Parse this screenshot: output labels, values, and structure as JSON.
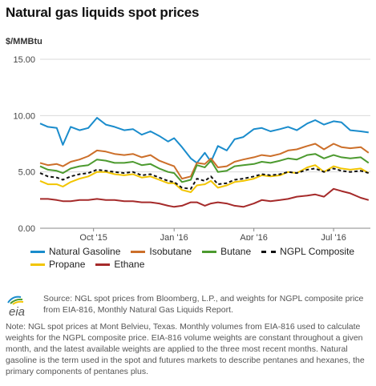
{
  "title": "Natural gas liquids spot prices",
  "unit_label": "$/MMBtu",
  "source_text": "Source: NGL spot prices from Bloomberg, L.P., and weights for NGPL composite price from EIA-816, Monthly Natural Gas Liquids Report.",
  "note_text": "Note: NGL spot prices at Mont Belvieu, Texas. Monthly volumes from EIA-816 used to calculate weights for the NGPL composite price. EIA-816 volume weights are constant throughout a given month, and the latest available weights are applied to the three most recent months. Natural gasoline is the term used in the spot and futures markets to describe pentanes and hexanes, the primary components of pentanes plus.",
  "logo_text": "eia",
  "chart_data": {
    "type": "line",
    "title": "Natural gas liquids spot prices",
    "ylabel": "$/MMBtu",
    "xlabel": "",
    "ylim": [
      0,
      15
    ],
    "yticks": [
      "0.00",
      "5.00",
      "10.00",
      "15.00"
    ],
    "xlim": [
      "2015-08-01",
      "2016-08-12"
    ],
    "xticks": [
      {
        "label": "Oct '15",
        "date": "2015-10-01"
      },
      {
        "label": "Jan '16",
        "date": "2016-01-01"
      },
      {
        "label": "Apr '16",
        "date": "2016-04-01"
      },
      {
        "label": "Jul '16",
        "date": "2016-07-01"
      }
    ],
    "grid": "horizontal",
    "legend_position": "bottom",
    "dates": [
      "2015-08-01",
      "2015-08-10",
      "2015-08-20",
      "2015-08-27",
      "2015-09-05",
      "2015-09-15",
      "2015-09-25",
      "2015-10-05",
      "2015-10-15",
      "2015-10-25",
      "2015-11-05",
      "2015-11-15",
      "2015-11-25",
      "2015-12-05",
      "2015-12-15",
      "2015-12-25",
      "2016-01-01",
      "2016-01-10",
      "2016-01-20",
      "2016-01-27",
      "2016-02-05",
      "2016-02-12",
      "2016-02-20",
      "2016-03-01",
      "2016-03-10",
      "2016-03-20",
      "2016-04-01",
      "2016-04-10",
      "2016-04-20",
      "2016-05-01",
      "2016-05-10",
      "2016-05-20",
      "2016-06-01",
      "2016-06-10",
      "2016-06-20",
      "2016-07-01",
      "2016-07-10",
      "2016-07-20",
      "2016-08-01",
      "2016-08-10"
    ],
    "series": [
      {
        "name": "Natural Gasoline",
        "color": "#1a8ccc",
        "values": [
          9.3,
          9.0,
          8.9,
          7.4,
          9.0,
          8.7,
          8.9,
          9.8,
          9.2,
          9.0,
          8.7,
          8.8,
          8.3,
          8.6,
          8.2,
          7.7,
          8.0,
          7.2,
          6.2,
          5.8,
          6.7,
          5.9,
          7.3,
          6.9,
          7.9,
          8.1,
          8.8,
          8.9,
          8.6,
          8.8,
          9.0,
          8.7,
          9.3,
          9.6,
          9.2,
          9.5,
          9.4,
          8.7,
          8.6,
          8.5
        ]
      },
      {
        "name": "Isobutane",
        "color": "#cc6f2a",
        "values": [
          5.8,
          5.6,
          5.7,
          5.5,
          5.9,
          6.1,
          6.4,
          6.9,
          6.8,
          6.6,
          6.5,
          6.6,
          6.3,
          6.5,
          6.0,
          5.7,
          5.5,
          4.4,
          4.6,
          5.8,
          5.7,
          6.2,
          5.4,
          5.5,
          5.9,
          6.1,
          6.3,
          6.5,
          6.4,
          6.6,
          6.9,
          7.0,
          7.3,
          7.5,
          7.0,
          7.5,
          7.2,
          7.1,
          7.2,
          6.7
        ]
      },
      {
        "name": "Butane",
        "color": "#4c9a2f",
        "values": [
          5.5,
          5.2,
          5.1,
          4.9,
          5.3,
          5.5,
          5.6,
          6.1,
          6.0,
          5.8,
          5.8,
          5.9,
          5.6,
          5.7,
          5.3,
          5.0,
          4.9,
          4.1,
          4.3,
          5.6,
          5.4,
          6.0,
          5.0,
          5.1,
          5.5,
          5.6,
          5.7,
          5.9,
          5.8,
          6.0,
          6.2,
          6.1,
          6.5,
          6.6,
          6.2,
          6.5,
          6.3,
          6.2,
          6.3,
          5.8
        ]
      },
      {
        "name": "NGPL Composite",
        "color": "#111111",
        "dash": true,
        "values": [
          4.9,
          4.6,
          4.5,
          4.3,
          4.6,
          4.8,
          4.9,
          5.2,
          5.1,
          5.0,
          4.9,
          5.0,
          4.7,
          4.8,
          4.5,
          4.2,
          4.1,
          3.6,
          3.5,
          4.4,
          4.2,
          4.6,
          3.9,
          4.0,
          4.3,
          4.4,
          4.6,
          4.8,
          4.7,
          4.8,
          5.0,
          4.9,
          5.2,
          5.3,
          5.0,
          5.3,
          5.1,
          5.0,
          5.1,
          4.9
        ]
      },
      {
        "name": "Propane",
        "color": "#f2c500",
        "values": [
          4.2,
          3.9,
          3.9,
          3.7,
          4.1,
          4.4,
          4.6,
          5.0,
          5.0,
          4.8,
          4.7,
          4.8,
          4.5,
          4.6,
          4.3,
          4.0,
          4.0,
          3.4,
          3.2,
          3.8,
          3.9,
          4.2,
          3.6,
          3.8,
          4.1,
          4.2,
          4.4,
          4.7,
          4.6,
          4.7,
          5.0,
          4.9,
          5.4,
          5.6,
          5.0,
          5.5,
          5.3,
          5.2,
          5.3,
          4.9
        ]
      },
      {
        "name": "Ethane",
        "color": "#a52a2a",
        "values": [
          2.6,
          2.6,
          2.5,
          2.4,
          2.4,
          2.5,
          2.5,
          2.6,
          2.5,
          2.5,
          2.4,
          2.4,
          2.3,
          2.3,
          2.2,
          2.0,
          1.9,
          2.0,
          2.3,
          2.3,
          2.0,
          2.2,
          2.3,
          2.2,
          2.0,
          1.9,
          2.2,
          2.5,
          2.4,
          2.5,
          2.6,
          2.8,
          2.9,
          3.0,
          2.8,
          3.5,
          3.3,
          3.1,
          2.7,
          2.5
        ]
      }
    ]
  }
}
